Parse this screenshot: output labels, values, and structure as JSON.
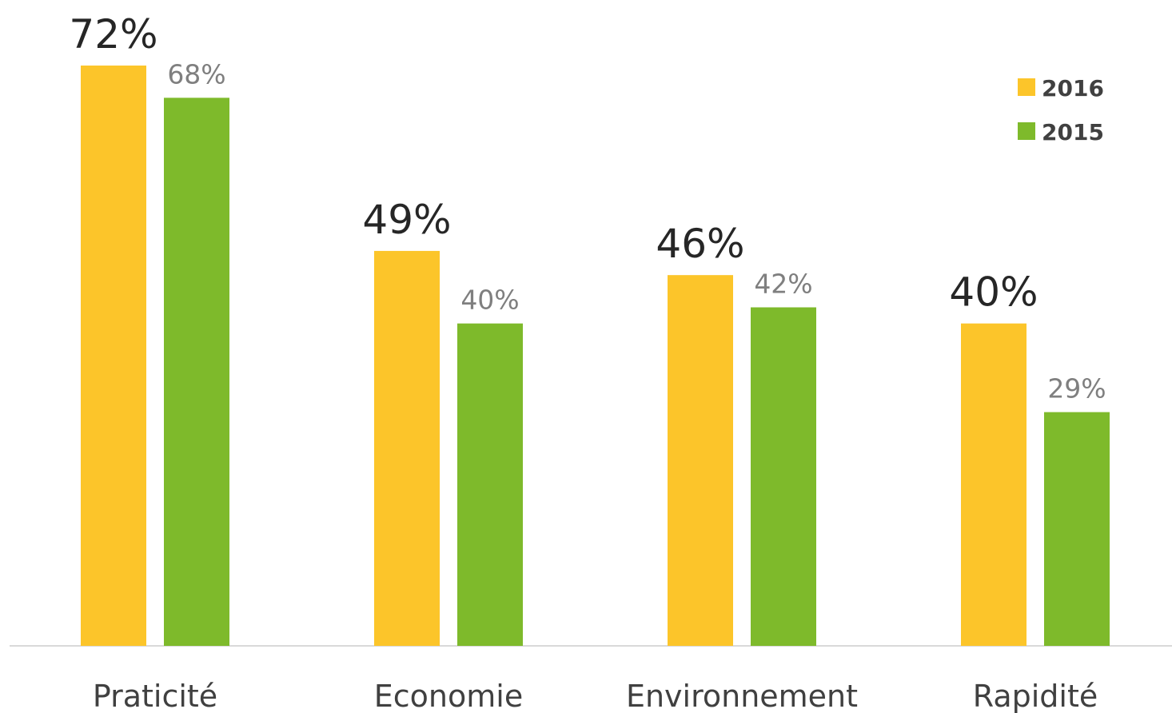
{
  "chart_data": {
    "type": "bar",
    "categories": [
      "Praticité",
      "Economie",
      "Environnement",
      "Rapidité"
    ],
    "series": [
      {
        "name": "2016",
        "values": [
          72,
          49,
          46,
          40
        ],
        "labels": [
          "72%",
          "49%",
          "46%",
          "40%"
        ],
        "color": "#FCC52A"
      },
      {
        "name": "2015",
        "values": [
          68,
          40,
          42,
          29
        ],
        "labels": [
          "68%",
          "40%",
          "42%",
          "29%"
        ],
        "color": "#7EBA2B"
      }
    ],
    "ylim": [
      0,
      72
    ],
    "grid": false,
    "legend": "top-right",
    "title": "",
    "xlabel": "",
    "ylabel": "",
    "axis_color": "#D9D9D9"
  }
}
